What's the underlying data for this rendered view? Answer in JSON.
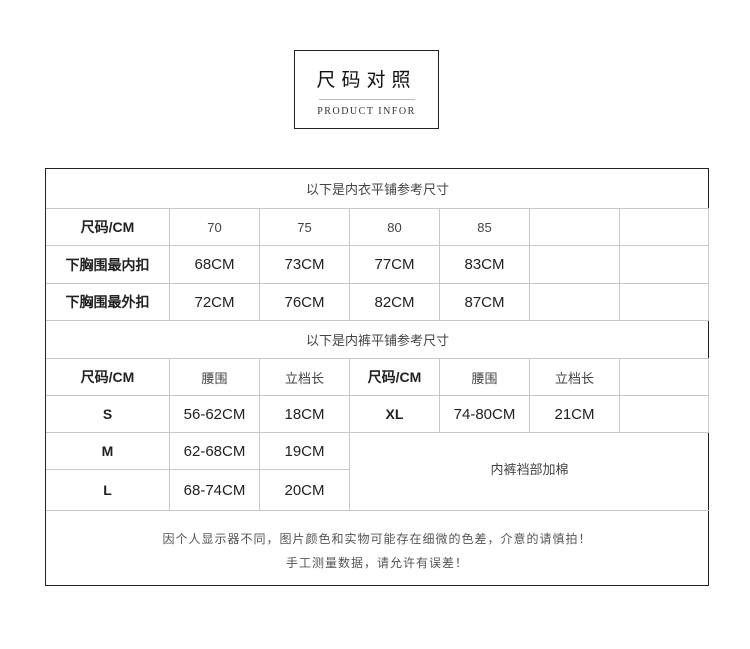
{
  "title": {
    "cn": "尺码对照",
    "en": "PRODUCT INFOR"
  },
  "bra": {
    "caption": "以下是内衣平铺参考尺寸",
    "header": [
      "尺码/CM",
      "70",
      "75",
      "80",
      "85",
      "",
      ""
    ],
    "rows": [
      [
        "下胸围最内扣",
        "68CM",
        "73CM",
        "77CM",
        "83CM",
        "",
        ""
      ],
      [
        "下胸围最外扣",
        "72CM",
        "76CM",
        "82CM",
        "87CM",
        "",
        ""
      ]
    ]
  },
  "briefs": {
    "caption": "以下是内裤平铺参考尺寸",
    "header": [
      "尺码/CM",
      "腰围",
      "立档长",
      "尺码/CM",
      "腰围",
      "立档长",
      ""
    ],
    "rows": [
      [
        "S",
        "56-62CM",
        "18CM",
        "XL",
        "74-80CM",
        "21CM",
        ""
      ],
      [
        "M",
        "62-68CM",
        "19CM"
      ],
      [
        "L",
        "68-74CM",
        "20CM"
      ]
    ],
    "merged_note": "内裤裆部加棉"
  },
  "notes": [
    "因个人显示器不同，图片颜色和实物可能存在细微的色差，介意的请慎拍！",
    "手工测量数据，请允许有误差！"
  ]
}
